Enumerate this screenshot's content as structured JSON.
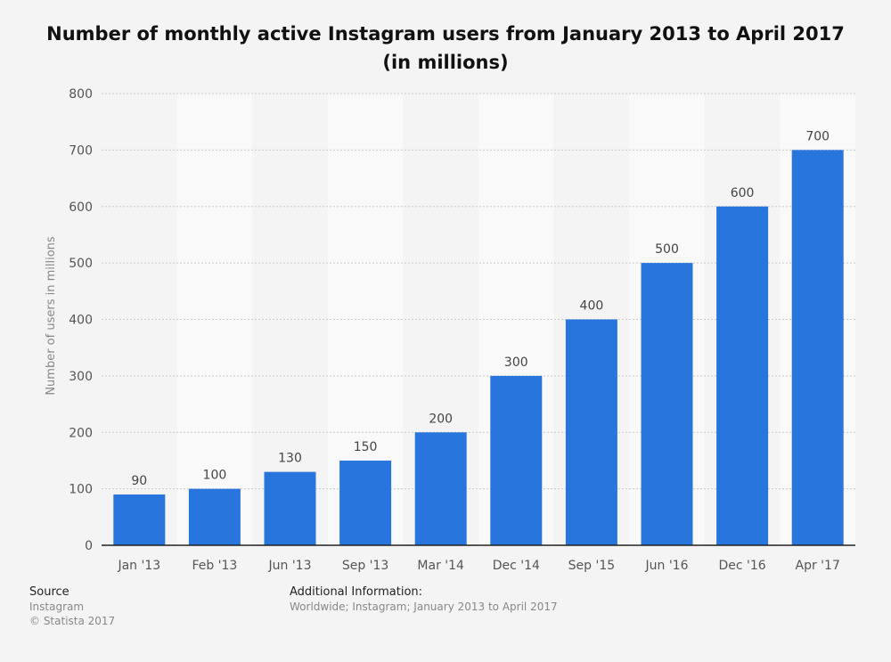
{
  "chart_data": {
    "type": "bar",
    "title_line1": "Number of monthly active Instagram users from January 2013 to April 2017",
    "title_line2": "(in millions)",
    "ylabel": "Number of users in millions",
    "xlabel": "",
    "categories": [
      "Jan '13",
      "Feb '13",
      "Jun '13",
      "Sep '13",
      "Mar '14",
      "Dec '14",
      "Sep '15",
      "Jun '16",
      "Dec '16",
      "Apr '17"
    ],
    "values": [
      90,
      100,
      130,
      150,
      200,
      300,
      400,
      500,
      600,
      700
    ],
    "ylim": [
      0,
      800
    ],
    "yticks": [
      0,
      100,
      200,
      300,
      400,
      500,
      600,
      700,
      800
    ],
    "grid": true,
    "bar_color": "#2876dd"
  },
  "footer": {
    "source_heading": "Source",
    "source_name": "Instagram",
    "copyright": "© Statista 2017",
    "info_heading": "Additional Information:",
    "info_text": "Worldwide; Instagram; January 2013 to April 2017"
  }
}
